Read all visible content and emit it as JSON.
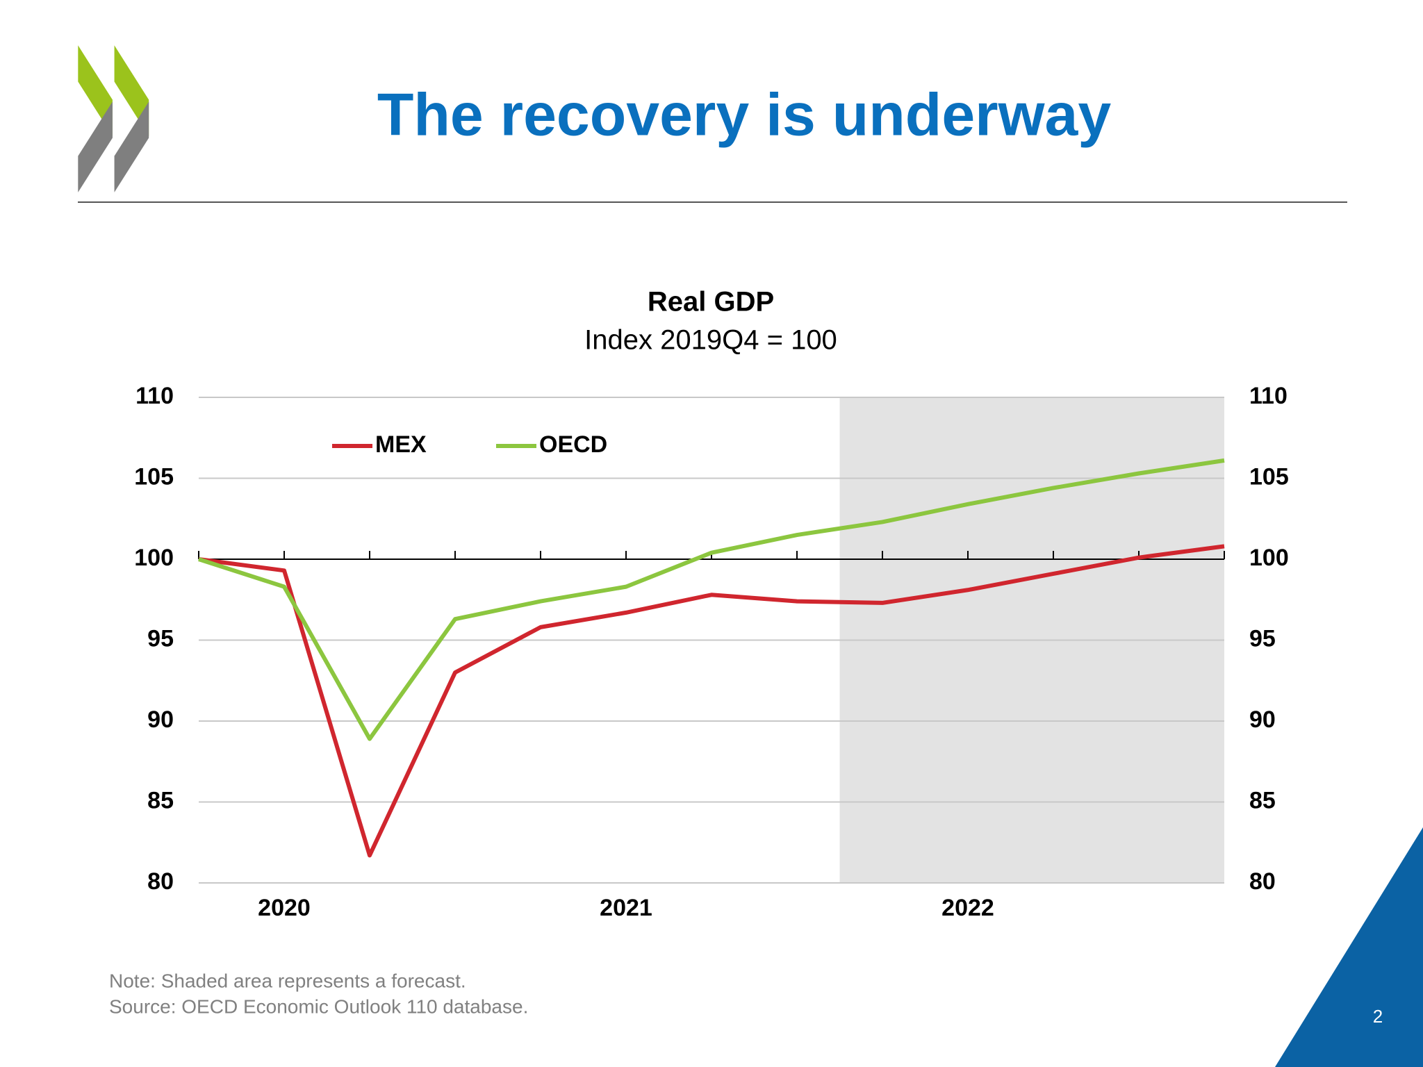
{
  "slide": {
    "title": "The recovery is underway",
    "note": "Note: Shaded area represents a forecast.",
    "source": "Source: OECD Economic Outlook 110 database.",
    "page_number": "2"
  },
  "chart_data": {
    "type": "line",
    "title": "Real GDP",
    "subtitle": "Index 2019Q4 = 100",
    "categories": [
      null,
      "2020",
      null,
      null,
      null,
      "2021",
      null,
      null,
      null,
      "2022",
      null,
      null,
      null
    ],
    "series": [
      {
        "name": "MEX",
        "color": "#d0262e",
        "values": [
          100,
          99.3,
          81.7,
          93.0,
          95.8,
          96.7,
          97.8,
          97.4,
          97.3,
          98.1,
          99.1,
          100.1,
          100.8
        ]
      },
      {
        "name": "OECD",
        "color": "#8cc63f",
        "values": [
          100,
          98.3,
          88.9,
          96.3,
          97.4,
          98.3,
          100.4,
          101.5,
          102.3,
          103.4,
          104.4,
          105.3,
          106.1
        ]
      }
    ],
    "ylim": [
      80,
      110
    ],
    "yticks": [
      80,
      85,
      90,
      95,
      100,
      105,
      110
    ],
    "y2lim": [
      80,
      110
    ],
    "y2ticks": [
      80,
      85,
      90,
      95,
      100,
      105,
      110
    ],
    "x_axis_at": 100,
    "shaded_from": 8,
    "grid": true,
    "legend": "top-left"
  }
}
